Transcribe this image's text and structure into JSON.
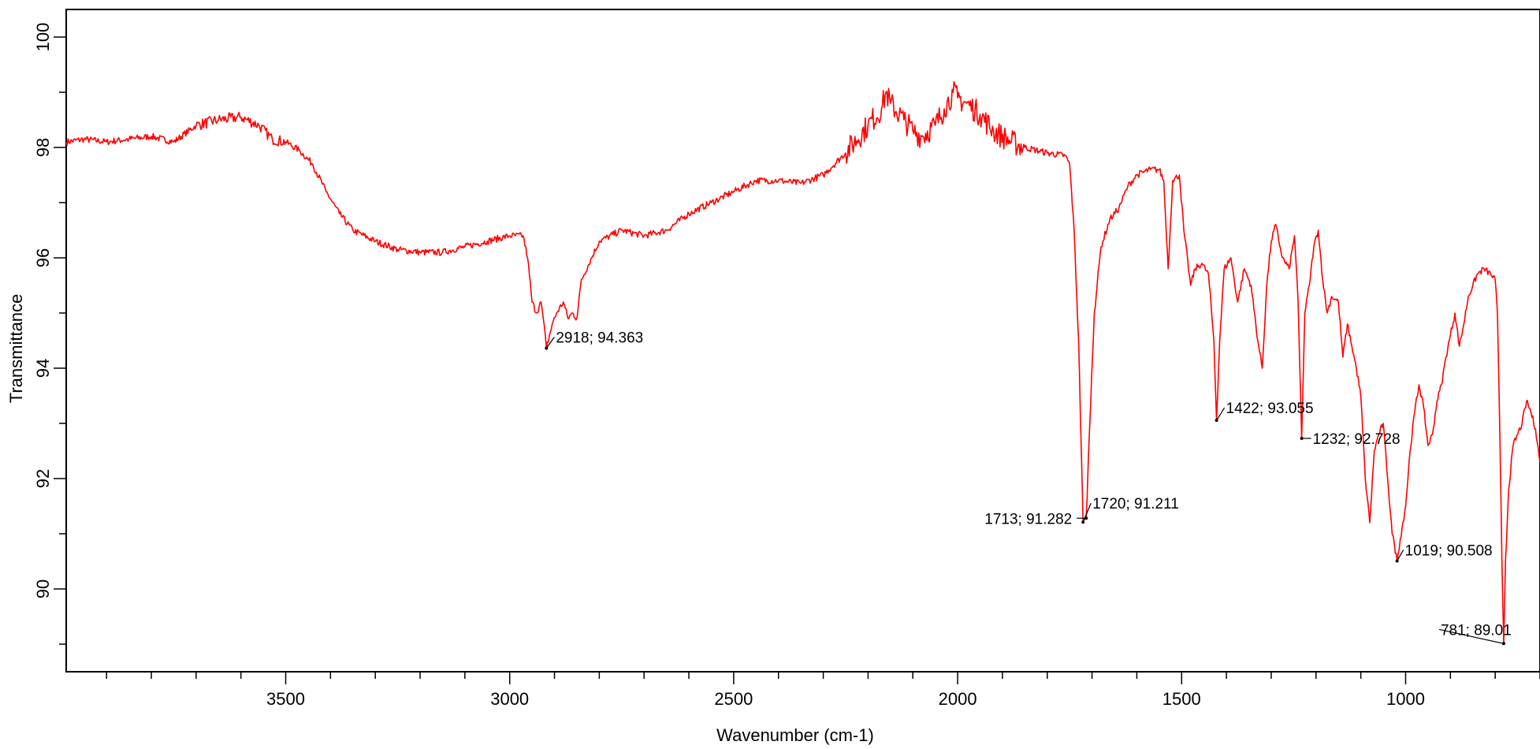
{
  "chart_data": {
    "type": "line",
    "title": "",
    "xlabel": "Wavenumber (cm-1)",
    "ylabel": "Transmittance",
    "xlim": [
      3990,
      700
    ],
    "ylim": [
      88.5,
      100.5
    ],
    "x_reversed": true,
    "grid": false,
    "legend": "none",
    "x_ticks": [
      3500,
      3000,
      2500,
      2000,
      1500,
      1000
    ],
    "x_tick_labels": [
      "3500",
      "3000",
      "2500",
      "2000",
      "1500",
      "1000"
    ],
    "x_minor_step": 100,
    "y_ticks": [
      90,
      92,
      94,
      96,
      98,
      100
    ],
    "y_tick_labels": [
      "90",
      "92",
      "94",
      "96",
      "98",
      "100"
    ],
    "y_minor_step": 1,
    "series": [
      {
        "color": "#ff0000",
        "points": [
          [
            3990,
            98.1
          ],
          [
            3950,
            98.15
          ],
          [
            3900,
            98.1
          ],
          [
            3850,
            98.15
          ],
          [
            3800,
            98.2
          ],
          [
            3750,
            98.1
          ],
          [
            3700,
            98.4
          ],
          [
            3650,
            98.5
          ],
          [
            3600,
            98.55
          ],
          [
            3560,
            98.4
          ],
          [
            3530,
            98.15
          ],
          [
            3500,
            98.1
          ],
          [
            3470,
            97.95
          ],
          [
            3440,
            97.7
          ],
          [
            3410,
            97.2
          ],
          [
            3380,
            96.8
          ],
          [
            3350,
            96.5
          ],
          [
            3300,
            96.3
          ],
          [
            3250,
            96.15
          ],
          [
            3200,
            96.1
          ],
          [
            3150,
            96.1
          ],
          [
            3100,
            96.2
          ],
          [
            3050,
            96.3
          ],
          [
            3000,
            96.4
          ],
          [
            2970,
            96.4
          ],
          [
            2960,
            96.0
          ],
          [
            2950,
            95.2
          ],
          [
            2940,
            95.0
          ],
          [
            2930,
            95.2
          ],
          [
            2925,
            94.9
          ],
          [
            2918,
            94.363
          ],
          [
            2905,
            94.8
          ],
          [
            2895,
            95.0
          ],
          [
            2880,
            95.2
          ],
          [
            2870,
            94.9
          ],
          [
            2860,
            95.0
          ],
          [
            2850,
            94.9
          ],
          [
            2840,
            95.6
          ],
          [
            2800,
            96.3
          ],
          [
            2750,
            96.5
          ],
          [
            2700,
            96.4
          ],
          [
            2650,
            96.5
          ],
          [
            2600,
            96.8
          ],
          [
            2550,
            97.0
          ],
          [
            2500,
            97.2
          ],
          [
            2450,
            97.4
          ],
          [
            2400,
            97.4
          ],
          [
            2350,
            97.35
          ],
          [
            2300,
            97.5
          ],
          [
            2250,
            97.9
          ],
          [
            2200,
            98.4
          ],
          [
            2170,
            98.7
          ],
          [
            2160,
            99.0
          ],
          [
            2150,
            98.8
          ],
          [
            2120,
            98.5
          ],
          [
            2100,
            98.3
          ],
          [
            2080,
            98.2
          ],
          [
            2050,
            98.4
          ],
          [
            2030,
            98.7
          ],
          [
            2010,
            99.0
          ],
          [
            2000,
            98.9
          ],
          [
            1980,
            98.8
          ],
          [
            1950,
            98.6
          ],
          [
            1920,
            98.3
          ],
          [
            1880,
            98.1
          ],
          [
            1850,
            98.0
          ],
          [
            1800,
            97.9
          ],
          [
            1760,
            97.85
          ],
          [
            1750,
            97.7
          ],
          [
            1740,
            96.5
          ],
          [
            1730,
            94.5
          ],
          [
            1720,
            91.211
          ],
          [
            1713,
            91.282
          ],
          [
            1705,
            93.0
          ],
          [
            1695,
            95.0
          ],
          [
            1680,
            96.2
          ],
          [
            1660,
            96.7
          ],
          [
            1640,
            96.9
          ],
          [
            1620,
            97.3
          ],
          [
            1600,
            97.5
          ],
          [
            1570,
            97.6
          ],
          [
            1550,
            97.6
          ],
          [
            1540,
            97.4
          ],
          [
            1530,
            95.8
          ],
          [
            1520,
            97.4
          ],
          [
            1505,
            97.5
          ],
          [
            1495,
            96.5
          ],
          [
            1480,
            95.5
          ],
          [
            1470,
            95.8
          ],
          [
            1455,
            95.9
          ],
          [
            1440,
            95.7
          ],
          [
            1428,
            94.5
          ],
          [
            1422,
            93.055
          ],
          [
            1415,
            94.5
          ],
          [
            1405,
            95.8
          ],
          [
            1390,
            96.0
          ],
          [
            1375,
            95.2
          ],
          [
            1360,
            95.8
          ],
          [
            1345,
            95.5
          ],
          [
            1330,
            94.5
          ],
          [
            1320,
            94.0
          ],
          [
            1310,
            95.5
          ],
          [
            1300,
            96.3
          ],
          [
            1290,
            96.6
          ],
          [
            1275,
            96.0
          ],
          [
            1260,
            95.8
          ],
          [
            1248,
            96.4
          ],
          [
            1240,
            95.2
          ],
          [
            1232,
            92.728
          ],
          [
            1225,
            95.0
          ],
          [
            1215,
            95.5
          ],
          [
            1205,
            96.2
          ],
          [
            1195,
            96.5
          ],
          [
            1185,
            95.6
          ],
          [
            1175,
            95.0
          ],
          [
            1165,
            95.3
          ],
          [
            1150,
            95.2
          ],
          [
            1140,
            94.2
          ],
          [
            1130,
            94.8
          ],
          [
            1120,
            94.4
          ],
          [
            1110,
            94.0
          ],
          [
            1100,
            93.5
          ],
          [
            1090,
            92.0
          ],
          [
            1080,
            91.2
          ],
          [
            1070,
            92.5
          ],
          [
            1060,
            92.8
          ],
          [
            1050,
            93.0
          ],
          [
            1040,
            92.0
          ],
          [
            1030,
            91.0
          ],
          [
            1025,
            90.8
          ],
          [
            1019,
            90.508
          ],
          [
            1012,
            90.9
          ],
          [
            1000,
            91.5
          ],
          [
            990,
            92.5
          ],
          [
            980,
            93.2
          ],
          [
            970,
            93.7
          ],
          [
            960,
            93.3
          ],
          [
            950,
            92.6
          ],
          [
            940,
            92.8
          ],
          [
            930,
            93.4
          ],
          [
            920,
            93.7
          ],
          [
            910,
            94.2
          ],
          [
            900,
            94.6
          ],
          [
            890,
            95.0
          ],
          [
            880,
            94.4
          ],
          [
            870,
            94.8
          ],
          [
            860,
            95.3
          ],
          [
            850,
            95.5
          ],
          [
            840,
            95.7
          ],
          [
            825,
            95.8
          ],
          [
            810,
            95.7
          ],
          [
            800,
            95.6
          ],
          [
            795,
            95.0
          ],
          [
            790,
            93.0
          ],
          [
            785,
            90.5
          ],
          [
            781,
            89.01
          ],
          [
            777,
            90.5
          ],
          [
            770,
            91.8
          ],
          [
            760,
            92.6
          ],
          [
            750,
            92.8
          ],
          [
            740,
            93.0
          ],
          [
            730,
            93.4
          ],
          [
            720,
            93.2
          ],
          [
            710,
            92.9
          ],
          [
            700,
            92.3
          ]
        ]
      }
    ],
    "annotations": [
      {
        "label": "2918; 94.363",
        "x": 2918,
        "y": 94.363
      },
      {
        "label": "1422; 93.055",
        "x": 1422,
        "y": 93.055
      },
      {
        "label": "1232; 92.728",
        "x": 1232,
        "y": 92.728
      },
      {
        "label": "1720; 91.211",
        "x": 1720,
        "y": 91.211
      },
      {
        "label": "1713; 91.282",
        "x": 1713,
        "y": 91.282
      },
      {
        "label": "1019; 90.508",
        "x": 1019,
        "y": 90.508
      },
      {
        "label": "781; 89.01",
        "x": 781,
        "y": 89.01
      }
    ]
  }
}
